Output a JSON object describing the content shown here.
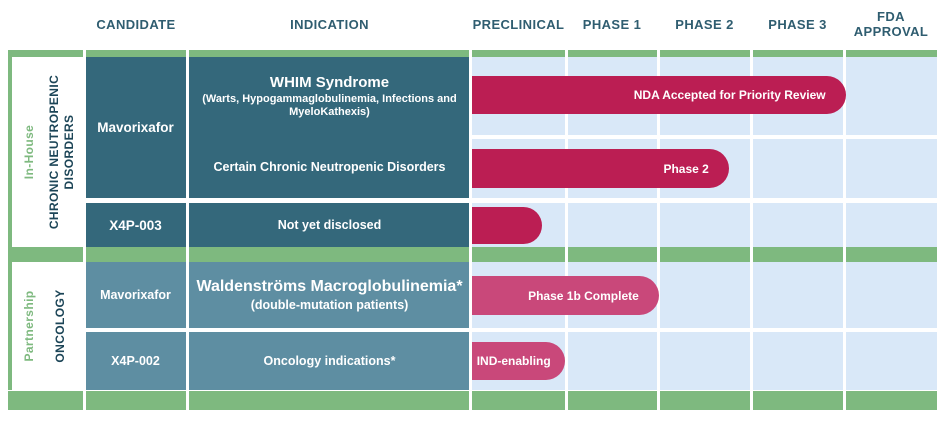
{
  "colors": {
    "green": "#7EB97F",
    "teal-dark": "#34687B",
    "teal-light": "#5E8EA2",
    "crimson": "#BB1E53",
    "rose": "#C9487A",
    "track-blue": "#D9E8F8",
    "header-text": "#2F5D70",
    "label-navy": "#1C4557"
  },
  "columns": {
    "candidate": "CANDIDATE",
    "indication": "INDICATION",
    "preclinical": "PRECLINICAL",
    "phase1": "PHASE 1",
    "phase2": "PHASE 2",
    "phase3": "PHASE 3",
    "fda": "FDA APPROVAL"
  },
  "sections": [
    {
      "group_label": "In-House",
      "area_label": "CHRONIC NEUTROPENIC DISORDERS",
      "rows": [
        {
          "candidate": "Mavorixafor",
          "indication_title": "WHIM Syndrome",
          "indication_sub": "(Warts, Hypogammaglobulinemia, Infections and MyeloKathexis)",
          "bar_label": "NDA Accepted for Priority Review"
        },
        {
          "candidate": "Mavorixafor",
          "indication": "Certain Chronic Neutropenic Disorders",
          "bar_label": "Phase 2"
        },
        {
          "candidate": "X4P-003",
          "indication": "Not yet disclosed",
          "bar_label": ""
        }
      ]
    },
    {
      "group_label": "Partnership",
      "area_label": "ONCOLOGY",
      "rows": [
        {
          "candidate": "Mavorixafor",
          "indication_title": "Waldenströms Macroglobulinemia*",
          "indication_sub": "(double-mutation patients)",
          "bar_label": "Phase 1b Complete"
        },
        {
          "candidate": "X4P-002",
          "indication": "Oncology indications*",
          "bar_label": "IND-enabling"
        }
      ]
    }
  ],
  "chart_data": {
    "type": "bar",
    "orientation": "horizontal",
    "stages": [
      "Preclinical",
      "Phase 1",
      "Phase 2",
      "Phase 3",
      "FDA Approval"
    ],
    "series": [
      {
        "group": "In-House / Chronic Neutropenic Disorders",
        "candidate": "Mavorixafor",
        "indication": "WHIM Syndrome (Warts, Hypogammaglobulinemia, Infections and MyeloKathexis)",
        "label": "NDA Accepted for Priority Review",
        "extent_stage_units": 4.0
      },
      {
        "group": "In-House / Chronic Neutropenic Disorders",
        "candidate": "Mavorixafor",
        "indication": "Certain Chronic Neutropenic Disorders",
        "label": "Phase 2",
        "extent_stage_units": 2.75
      },
      {
        "group": "In-House / Chronic Neutropenic Disorders",
        "candidate": "X4P-003",
        "indication": "Not yet disclosed",
        "label": "",
        "extent_stage_units": 0.75
      },
      {
        "group": "Partnership / Oncology",
        "candidate": "Mavorixafor",
        "indication": "Waldenströms Macroglobulinemia* (double-mutation patients)",
        "label": "Phase 1b Complete",
        "extent_stage_units": 2.0
      },
      {
        "group": "Partnership / Oncology",
        "candidate": "X4P-002",
        "indication": "Oncology indications*",
        "label": "IND-enabling",
        "extent_stage_units": 1.0
      }
    ]
  }
}
